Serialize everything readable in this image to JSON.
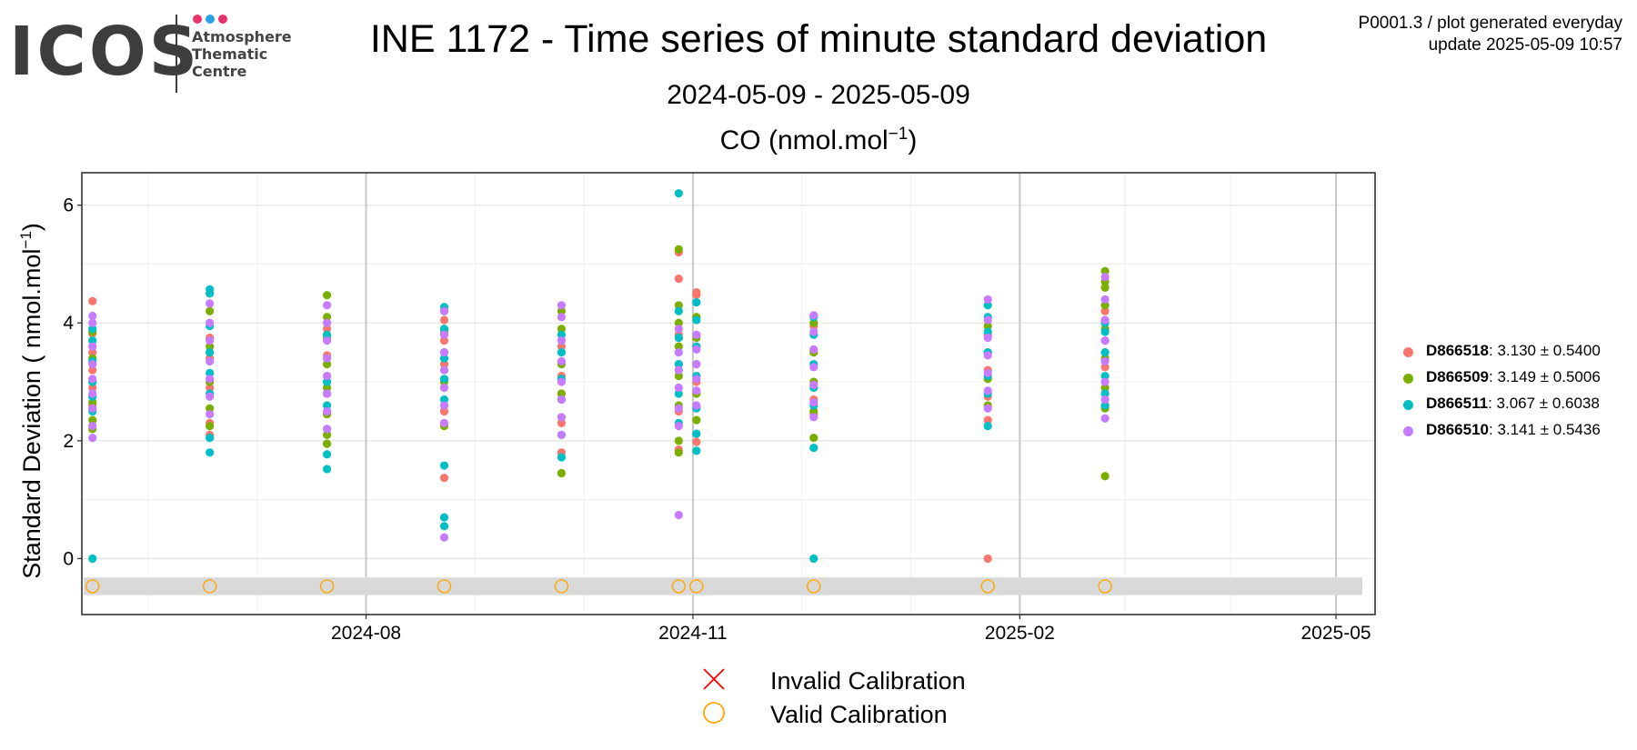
{
  "header": {
    "logo_word": "ICOS",
    "logo_lines": [
      "Atmosphere",
      "Thematic",
      "Centre"
    ],
    "logo_dot_colors": [
      "#e8336d",
      "#2aa4e0",
      "#e8336d"
    ],
    "title": "INE 1172 - Time series of minute standard deviation",
    "subtitle": "2024-05-09 - 2025-05-09",
    "meta_line1": "P0001.3 / plot generated everyday",
    "meta_line2": "update  2025-05-09 10:57"
  },
  "chart_data": {
    "type": "scatter",
    "panel_title": "CO (nmol.mol",
    "panel_title_sup": "−1",
    "panel_title_end": ")",
    "ylabel": "Standard Deviation ( nmol.mol",
    "ylabel_sup": "−1",
    "ylabel_end": ")",
    "xlim": [
      "2024-05-13",
      "2025-05-12"
    ],
    "ylim": [
      -0.95,
      6.55
    ],
    "x_ticks": [
      {
        "date": "2024-08-01",
        "label": "2024-08"
      },
      {
        "date": "2024-11-01",
        "label": "2024-11"
      },
      {
        "date": "2025-02-01",
        "label": "2025-02"
      },
      {
        "date": "2025-05-01",
        "label": "2025-05"
      }
    ],
    "y_ticks": [
      0,
      2,
      4,
      6
    ],
    "grid": true,
    "legend_placement": "right",
    "calibration_band": {
      "y_min": -0.62,
      "y_max": -0.32
    },
    "calibration_date_col": "2024-05-16",
    "calibrations": [
      {
        "date": "2024-05-16",
        "status": "valid"
      },
      {
        "date": "2024-06-18",
        "status": "valid"
      },
      {
        "date": "2024-07-21",
        "status": "valid"
      },
      {
        "date": "2024-08-23",
        "status": "valid"
      },
      {
        "date": "2024-09-25",
        "status": "valid"
      },
      {
        "date": "2024-10-28",
        "status": "valid"
      },
      {
        "date": "2024-11-02",
        "status": "valid"
      },
      {
        "date": "2024-12-05",
        "status": "valid"
      },
      {
        "date": "2025-01-23",
        "status": "valid"
      },
      {
        "date": "2025-02-25",
        "status": "valid"
      }
    ],
    "calibration_legend": [
      {
        "symbol": "cross",
        "label": "Invalid Calibration",
        "color": "#ff0000"
      },
      {
        "symbol": "circle",
        "label": "Valid Calibration",
        "color": "#ffa500"
      }
    ],
    "series": [
      {
        "name": "D866518",
        "stats": ": 3.130 ± 0.5400",
        "color": "#f8766d",
        "groups": [
          {
            "date": "2024-05-16",
            "values": [
              4.37,
              3.82,
              3.5,
              3.2,
              2.9,
              2.6
            ]
          },
          {
            "date": "2024-06-18",
            "values": [
              3.75,
              3.4,
              2.9,
              2.3,
              2.1
            ]
          },
          {
            "date": "2024-07-21",
            "values": [
              3.9,
              3.45,
              3.1,
              2.8,
              2.5
            ]
          },
          {
            "date": "2024-08-23",
            "values": [
              4.05,
              3.7,
              3.3,
              2.5,
              1.37
            ]
          },
          {
            "date": "2024-09-25",
            "values": [
              3.6,
              3.1,
              2.8,
              2.3,
              1.8
            ]
          },
          {
            "date": "2024-10-28",
            "values": [
              5.2,
              4.75,
              3.8,
              3.3,
              2.5,
              1.85
            ]
          },
          {
            "date": "2024-11-02",
            "values": [
              4.52,
              4.48,
              3.6,
              3.0,
              1.98
            ]
          },
          {
            "date": "2024-12-05",
            "values": [
              3.95,
              3.5,
              3.0,
              2.7,
              2.45
            ]
          },
          {
            "date": "2025-01-23",
            "values": [
              3.8,
              3.2,
              2.75,
              2.35,
              0.0
            ]
          },
          {
            "date": "2025-02-25",
            "values": [
              4.2,
              3.7,
              3.25,
              2.6
            ]
          }
        ]
      },
      {
        "name": "D866509",
        "stats": ": 3.149 ± 0.5006",
        "color": "#7cae00",
        "groups": [
          {
            "date": "2024-05-16",
            "values": [
              3.85,
              3.4,
              3.0,
              2.65,
              2.35,
              2.2
            ]
          },
          {
            "date": "2024-06-18",
            "values": [
              4.2,
              3.6,
              3.0,
              2.55,
              2.25
            ]
          },
          {
            "date": "2024-07-21",
            "values": [
              4.47,
              4.1,
              3.75,
              3.3,
              2.9,
              2.45,
              2.1,
              1.95
            ]
          },
          {
            "date": "2024-08-23",
            "values": [
              4.2,
              3.85,
              3.5,
              3.0,
              2.6,
              2.25
            ]
          },
          {
            "date": "2024-09-25",
            "values": [
              4.2,
              3.9,
              3.3,
              2.8,
              2.4,
              1.45
            ]
          },
          {
            "date": "2024-10-28",
            "values": [
              5.25,
              4.3,
              4.0,
              3.6,
              3.1,
              2.6,
              2.0,
              1.8
            ]
          },
          {
            "date": "2024-11-02",
            "values": [
              4.1,
              3.75,
              3.3,
              2.8,
              2.35
            ]
          },
          {
            "date": "2024-12-05",
            "values": [
              4.0,
              3.5,
              3.0,
              2.5,
              2.05
            ]
          },
          {
            "date": "2025-01-23",
            "values": [
              3.95,
              3.5,
              3.05,
              2.6
            ]
          },
          {
            "date": "2025-02-25",
            "values": [
              4.88,
              4.7,
              4.6,
              4.3,
              3.9,
              3.4,
              2.9,
              2.55,
              1.4
            ]
          }
        ]
      },
      {
        "name": "D866511",
        "stats": ": 3.067 ± 0.6038",
        "color": "#00bfc4",
        "groups": [
          {
            "date": "2024-05-16",
            "values": [
              3.9,
              3.7,
              3.35,
              3.0,
              2.75,
              2.5,
              0.0
            ]
          },
          {
            "date": "2024-06-18",
            "values": [
              4.57,
              4.5,
              3.95,
              3.5,
              3.15,
              2.8,
              2.05,
              1.8
            ]
          },
          {
            "date": "2024-07-21",
            "values": [
              3.8,
              3.4,
              3.0,
              2.6,
              2.2,
              1.77,
              1.52
            ]
          },
          {
            "date": "2024-08-23",
            "values": [
              4.27,
              3.9,
              3.4,
              3.05,
              2.7,
              1.58,
              0.7,
              0.55
            ]
          },
          {
            "date": "2024-09-25",
            "values": [
              3.8,
              3.5,
              3.05,
              2.7,
              2.1,
              1.72
            ]
          },
          {
            "date": "2024-10-28",
            "values": [
              6.2,
              4.2,
              3.75,
              3.3,
              2.8,
              2.3
            ]
          },
          {
            "date": "2024-11-02",
            "values": [
              4.35,
              4.05,
              3.6,
              3.1,
              2.55,
              2.12,
              1.83
            ]
          },
          {
            "date": "2024-12-05",
            "values": [
              4.1,
              3.8,
              3.3,
              2.9,
              2.6,
              1.88,
              0.0
            ]
          },
          {
            "date": "2025-01-23",
            "values": [
              4.3,
              4.1,
              3.85,
              3.5,
              3.1,
              2.8,
              2.25
            ]
          },
          {
            "date": "2025-02-25",
            "values": [
              4.0,
              3.85,
              3.5,
              3.1,
              2.8,
              2.6
            ]
          }
        ]
      },
      {
        "name": "D866510",
        "stats": ": 3.141 ± 0.5436",
        "color": "#c77cff",
        "groups": [
          {
            "date": "2024-05-16",
            "values": [
              4.12,
              4.0,
              3.6,
              3.3,
              3.05,
              2.8,
              2.55,
              2.25,
              2.05
            ]
          },
          {
            "date": "2024-06-18",
            "values": [
              4.33,
              4.0,
              3.7,
              3.35,
              3.05,
              2.75,
              2.45
            ]
          },
          {
            "date": "2024-07-21",
            "values": [
              4.3,
              4.0,
              3.7,
              3.4,
              3.1,
              2.8,
              2.5,
              2.2
            ]
          },
          {
            "date": "2024-08-23",
            "values": [
              4.2,
              3.8,
              3.5,
              3.2,
              2.9,
              2.6,
              2.3,
              0.36
            ]
          },
          {
            "date": "2024-09-25",
            "values": [
              4.3,
              4.1,
              3.7,
              3.35,
              3.0,
              2.7,
              2.4,
              2.1
            ]
          },
          {
            "date": "2024-10-28",
            "values": [
              3.9,
              3.5,
              3.2,
              2.9,
              2.55,
              2.25,
              0.74
            ]
          },
          {
            "date": "2024-11-02",
            "values": [
              3.8,
              3.55,
              3.3,
              3.05,
              2.85,
              2.6
            ]
          },
          {
            "date": "2024-12-05",
            "values": [
              4.13,
              3.85,
              3.55,
              3.25,
              2.95,
              2.65,
              2.4
            ]
          },
          {
            "date": "2025-01-23",
            "values": [
              4.4,
              4.05,
              3.75,
              3.45,
              3.15,
              2.85,
              2.55
            ]
          },
          {
            "date": "2025-02-25",
            "values": [
              4.78,
              4.4,
              4.05,
              3.7,
              3.35,
              3.0,
              2.7,
              2.38
            ]
          }
        ]
      }
    ]
  }
}
